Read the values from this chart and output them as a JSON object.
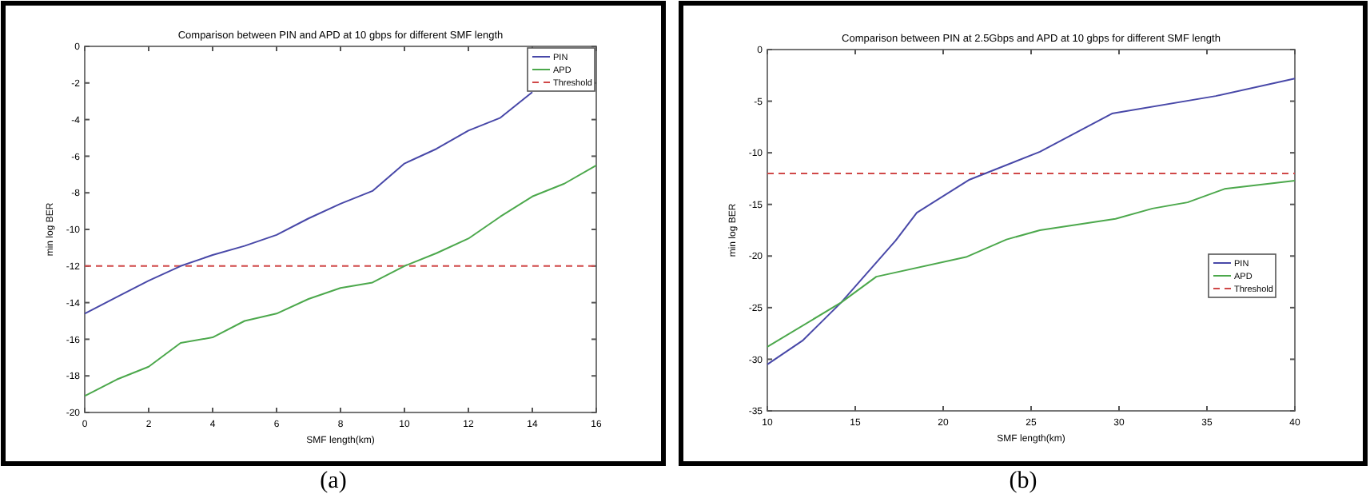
{
  "chart_data": [
    {
      "type": "line",
      "title": "Comparison between PIN and APD at 10 gbps for different SMF length",
      "xlabel": "SMF length(km)",
      "ylabel": "min log BER",
      "x": [
        0,
        1,
        2,
        3,
        4,
        5,
        6,
        7,
        8,
        9,
        10,
        11,
        12,
        13,
        14,
        15,
        16
      ],
      "xlim": [
        0,
        16
      ],
      "xticks": [
        0,
        2,
        4,
        6,
        8,
        10,
        12,
        14,
        16
      ],
      "ylim": [
        -20,
        0
      ],
      "yticks": [
        -20,
        -18,
        -16,
        -14,
        -12,
        -10,
        -8,
        -6,
        -4,
        -2,
        0
      ],
      "legend": "top right",
      "line_style": "solid",
      "grid": false,
      "annotations": [
        "(a)"
      ],
      "series": [
        {
          "name": "PIN",
          "color": "#4848a8",
          "values": [
            -14.6,
            -13.7,
            -12.8,
            -12,
            -11.4,
            -10.9,
            -10.3,
            -9.4,
            -8.6,
            -7.9,
            -6.4,
            -5.6,
            -4.6,
            -3.9,
            -2.5,
            null,
            null
          ]
        },
        {
          "name": "APD",
          "color": "#4ca84c",
          "values": [
            -19.1,
            -18.2,
            -17.5,
            -16.2,
            -15.9,
            -15,
            -14.6,
            -13.8,
            -13.2,
            -12.9,
            -12,
            -11.3,
            -10.5,
            -9.3,
            -8.2,
            -7.5,
            -6.5
          ]
        }
      ],
      "ref_lines": [
        {
          "axis": "y",
          "value": -12,
          "label": "Threshold",
          "color": "#d04848",
          "line_style": "dashed"
        }
      ]
    },
    {
      "type": "line",
      "title": "Comparison between PIN at 2.5Gbps and APD at 10 gbps for different SMF length",
      "xlabel": "SMF length(km)",
      "ylabel": "min log BER",
      "xlim": [
        10,
        40
      ],
      "xticks": [
        10,
        15,
        20,
        25,
        30,
        35,
        40
      ],
      "ylim": [
        -35,
        0
      ],
      "yticks": [
        -35,
        -30,
        -25,
        -20,
        -15,
        -10,
        -5,
        0
      ],
      "legend": "right",
      "line_style": "solid",
      "grid": false,
      "annotations": [
        "(b)"
      ],
      "series": [
        {
          "name": "PIN",
          "color": "#4848a8",
          "x": [
            10,
            12,
            14.2,
            17.3,
            18.5,
            21.5,
            25.5,
            29.6,
            35.5,
            40
          ],
          "values": [
            -30.5,
            -28.2,
            -24.5,
            -18.5,
            -15.8,
            -12.6,
            -9.9,
            -6.2,
            -4.5,
            -2.8
          ]
        },
        {
          "name": "APD",
          "color": "#4ca84c",
          "x": [
            10,
            14.2,
            16.2,
            21.3,
            23.6,
            25.5,
            29.8,
            31.9,
            33.9,
            36,
            40
          ],
          "values": [
            -28.8,
            -24.5,
            -22,
            -20.1,
            -18.4,
            -17.5,
            -16.4,
            -15.4,
            -14.8,
            -13.5,
            -12.7
          ]
        }
      ],
      "ref_lines": [
        {
          "axis": "y",
          "value": -12,
          "label": "Threshold",
          "color": "#d04848",
          "line_style": "dashed"
        }
      ]
    }
  ]
}
